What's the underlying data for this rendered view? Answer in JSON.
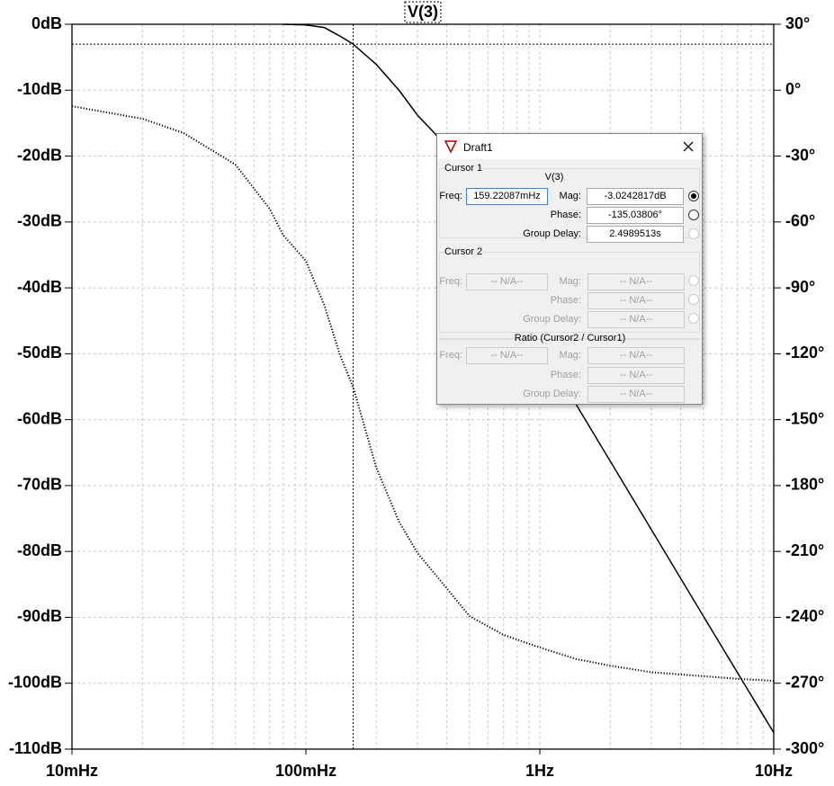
{
  "chart_data": {
    "type": "line",
    "title": "V(3)",
    "xscale": "log",
    "x": [
      0.01,
      0.02,
      0.03,
      0.05,
      0.07,
      0.08,
      0.1,
      0.12,
      0.14,
      0.159,
      0.2,
      0.25,
      0.3,
      0.361,
      0.5,
      0.7,
      1,
      1.43,
      2,
      3,
      5,
      7,
      10
    ],
    "series": [
      {
        "color": "#000000",
        "style": "solid",
        "values": [
          null,
          null,
          null,
          null,
          null,
          0,
          -0.1,
          -0.5,
          -1.8,
          -3.0,
          -6.1,
          -10,
          -13.8,
          -16.8,
          -25,
          -35,
          -46,
          -57.7,
          -66.3,
          -76.7,
          -89.8,
          -98.4,
          -107.5
        ]
      },
      {
        "color": "#000000",
        "style": "dotted",
        "axis": "y2",
        "values": [
          -7.3,
          -13,
          -19.5,
          -33.9,
          -54,
          -66,
          -77.7,
          -98,
          -120.7,
          -135,
          -171.8,
          -196.4,
          -210.7,
          -221,
          -239.4,
          -248,
          -253.7,
          -259,
          -262,
          -265,
          -266.8,
          -268,
          -268.9
        ]
      }
    ],
    "xlim": [
      0.01,
      10
    ],
    "xticks": [
      {
        "value": 0.01,
        "label": "10mHz"
      },
      {
        "value": 0.1,
        "label": "100mHz"
      },
      {
        "value": 1,
        "label": "1Hz"
      },
      {
        "value": 10,
        "label": "10Hz"
      }
    ],
    "ylim": [
      -110,
      0
    ],
    "yticks": [
      {
        "value": 0,
        "label": "0dB"
      },
      {
        "value": -10,
        "label": "-10dB"
      },
      {
        "value": -20,
        "label": "-20dB"
      },
      {
        "value": -30,
        "label": "-30dB"
      },
      {
        "value": -40,
        "label": "-40dB"
      },
      {
        "value": -50,
        "label": "-50dB"
      },
      {
        "value": -60,
        "label": "-60dB"
      },
      {
        "value": -70,
        "label": "-70dB"
      },
      {
        "value": -80,
        "label": "-80dB"
      },
      {
        "value": -90,
        "label": "-90dB"
      },
      {
        "value": -100,
        "label": "-100dB"
      },
      {
        "value": -110,
        "label": "-110dB"
      }
    ],
    "y2lim": [
      -300,
      30
    ],
    "y2ticks": [
      {
        "value": 30,
        "label": "30°"
      },
      {
        "value": 0,
        "label": "0°"
      },
      {
        "value": -30,
        "label": "-30°"
      },
      {
        "value": -60,
        "label": "-60°"
      },
      {
        "value": -90,
        "label": "-90°"
      },
      {
        "value": -120,
        "label": "-120°"
      },
      {
        "value": -150,
        "label": "-150°"
      },
      {
        "value": -180,
        "label": "-180°"
      },
      {
        "value": -210,
        "label": "-210°"
      },
      {
        "value": -240,
        "label": "-240°"
      },
      {
        "value": -270,
        "label": "-270°"
      },
      {
        "value": -300,
        "label": "-300°"
      }
    ],
    "grid": true,
    "cursor": {
      "x": 0.15922087,
      "y": -3.0242817
    }
  },
  "dialog": {
    "title": "Draft1",
    "cursor1": {
      "label": "Cursor 1",
      "trace": "V(3)",
      "freq_label": "Freq:",
      "freq": "159.22087mHz",
      "mag_label": "Mag:",
      "mag": "-3.0242817dB",
      "phase_label": "Phase:",
      "phase": "-135.03806°",
      "gd_label": "Group Delay:",
      "gd": "2.4989513s"
    },
    "cursor2": {
      "label": "Cursor 2",
      "freq_label": "Freq:",
      "freq": "-- N/A--",
      "mag_label": "Mag:",
      "mag": "-- N/A--",
      "phase_label": "Phase:",
      "phase": "-- N/A--",
      "gd_label": "Group Delay:",
      "gd": "-- N/A--"
    },
    "ratio": {
      "label": "Ratio (Cursor2 / Cursor1)",
      "freq_label": "Freq:",
      "freq": "-- N/A--",
      "mag_label": "Mag:",
      "mag": "-- N/A--",
      "phase_label": "Phase:",
      "phase": "-- N/A--",
      "gd_label": "Group Delay:",
      "gd": "-- N/A--"
    }
  }
}
